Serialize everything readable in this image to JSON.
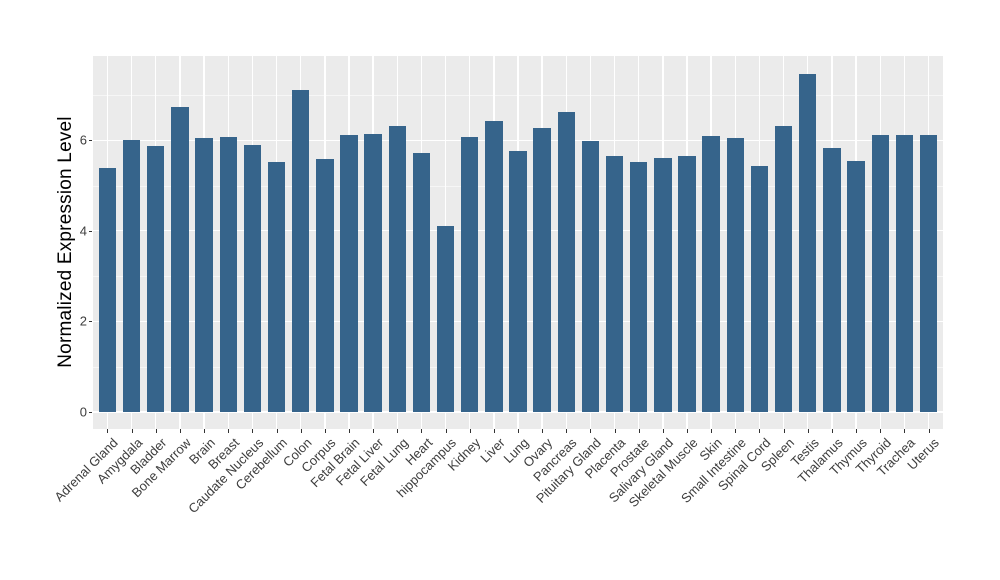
{
  "chart_data": {
    "type": "bar",
    "title": "",
    "xlabel": "",
    "ylabel": "Normalized Expression Level",
    "categories": [
      "Adrenal Gland",
      "Amygdala",
      "Bladder",
      "Bone Marrow",
      "Brain",
      "Breast",
      "Caudate Nucleus",
      "Cerebellum",
      "Colon",
      "Corpus",
      "Fetal Brain",
      "Fetal Liver",
      "Fetal Lung",
      "Heart",
      "hippocampus",
      "Kidney",
      "Liver",
      "Lung",
      "Ovary",
      "Pancreas",
      "Pituitary Gland",
      "Placenta",
      "Prostate",
      "Salivary Gland",
      "Skeletal Muscle",
      "Skin",
      "Small Intestine",
      "Spinal Cord",
      "Spleen",
      "Testis",
      "Thalamus",
      "Thymus",
      "Thyroid",
      "Trachea",
      "Uterus"
    ],
    "values": [
      5.39,
      6.01,
      5.87,
      6.74,
      6.05,
      6.08,
      5.9,
      5.52,
      7.11,
      5.58,
      6.11,
      6.13,
      6.32,
      5.72,
      4.11,
      6.07,
      6.42,
      5.76,
      6.26,
      6.63,
      5.98,
      5.65,
      5.51,
      5.6,
      5.65,
      6.1,
      6.05,
      5.42,
      6.31,
      7.46,
      5.83,
      5.55,
      6.12,
      6.12,
      6.11
    ],
    "y_ticks": [
      0,
      2,
      4,
      6
    ],
    "y_minor_ticks": [
      1,
      3,
      5,
      7
    ],
    "ylim": [
      -0.38,
      7.83
    ],
    "grid": true,
    "legend": false,
    "x_tick_angle_deg": 45,
    "colors": {
      "bar": "#36648B",
      "panel_background": "#EBEBEB",
      "grid_major": "#FFFFFF",
      "grid_minor": "#FFFFFF",
      "tick_text": "#3d3d3d",
      "axis_title_text": "#000000",
      "tick_mark": "#333333",
      "figure_background": "#FFFFFF"
    }
  }
}
